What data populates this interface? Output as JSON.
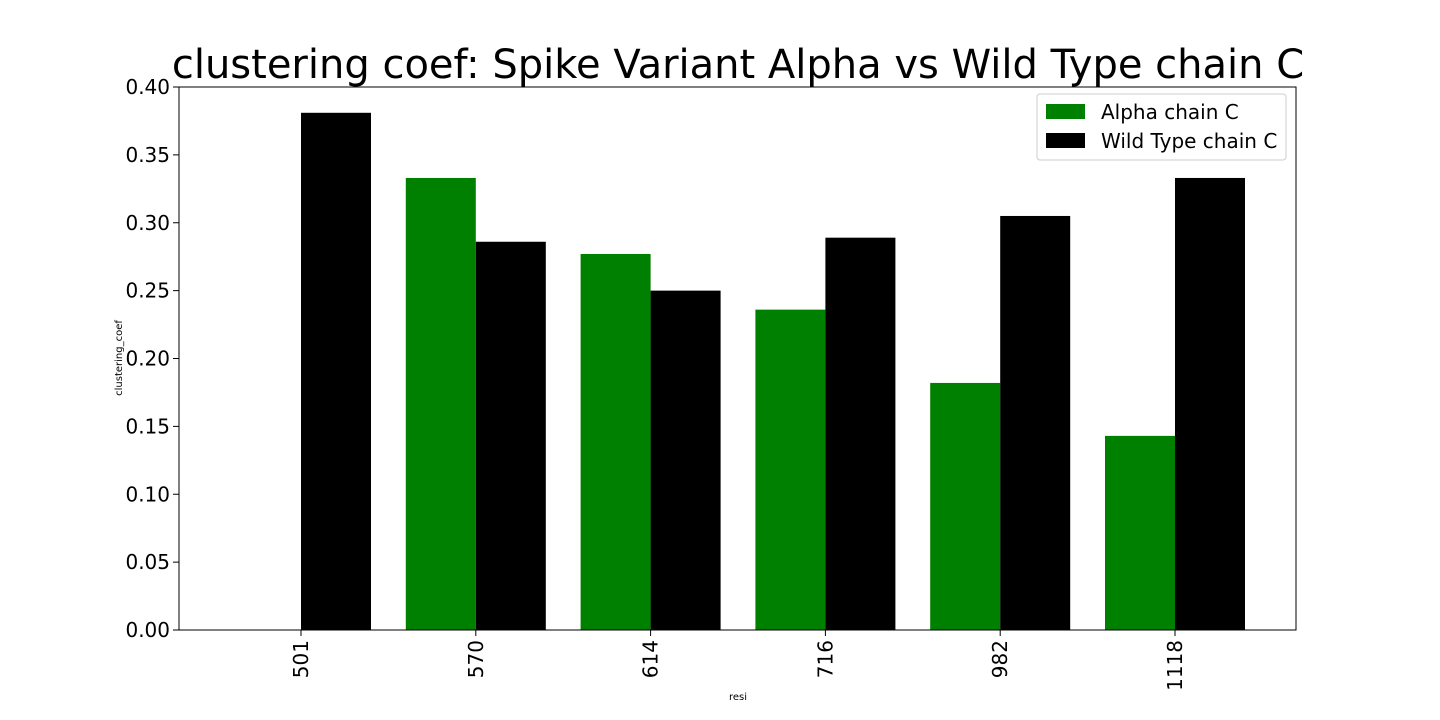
{
  "chart_data": {
    "type": "bar",
    "title": "clustering coef: Spike Variant Alpha vs Wild Type chain C",
    "xlabel": "resi",
    "ylabel": "clustering_coef",
    "categories": [
      "501",
      "570",
      "614",
      "716",
      "982",
      "1118"
    ],
    "series": [
      {
        "name": "Alpha chain C",
        "color": "#008000",
        "values": [
          null,
          0.333,
          0.277,
          0.236,
          0.182,
          0.143
        ]
      },
      {
        "name": "Wild Type chain C",
        "color": "#000000",
        "values": [
          0.381,
          0.286,
          0.25,
          0.289,
          0.305,
          0.333
        ]
      }
    ],
    "ylim": [
      0,
      0.4
    ],
    "yticks": [
      "0.00",
      "0.05",
      "0.10",
      "0.15",
      "0.20",
      "0.25",
      "0.30",
      "0.35",
      "0.40"
    ],
    "ytick_values": [
      0,
      0.05,
      0.1,
      0.15,
      0.2,
      0.25,
      0.3,
      0.35,
      0.4
    ],
    "grid": false,
    "legend_position": "top-right",
    "x_tick_rotation": "vertical"
  }
}
